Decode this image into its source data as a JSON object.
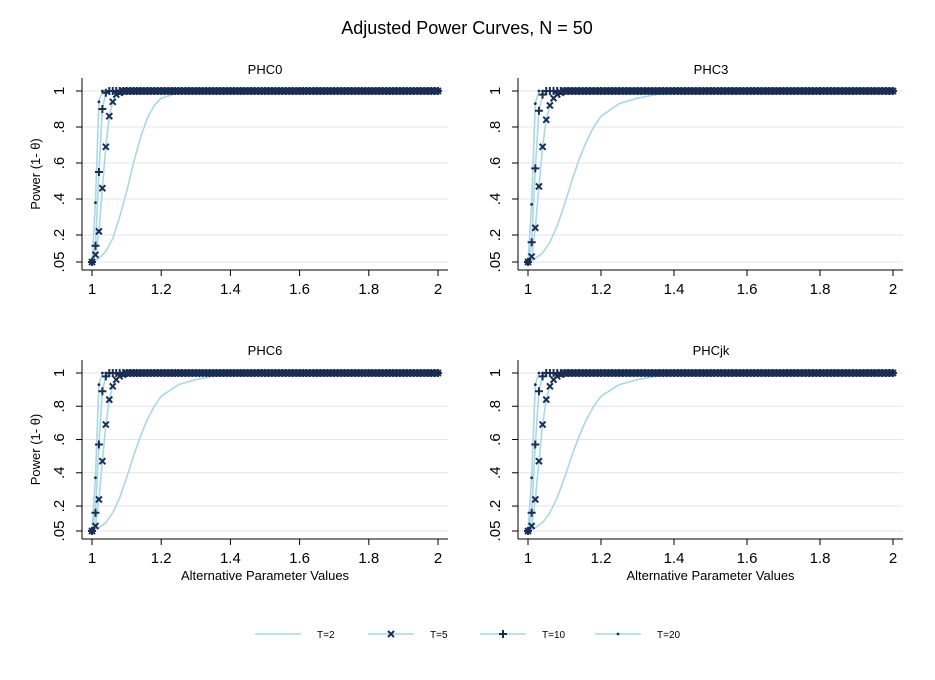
{
  "figure": {
    "title": "Adjusted Power Curves, N = 50",
    "colors": {
      "t2": "#a8d8e6",
      "markers": "#1a2e55",
      "grid": "#e6e6e6",
      "axis": "#000000"
    }
  },
  "chart_data": [
    {
      "type": "line",
      "title": "PHC0",
      "xlabel": "",
      "ylabel": "Power (1- θ)",
      "xlim": [
        1,
        2
      ],
      "ylim": [
        0.05,
        1
      ],
      "xticks": [
        "1",
        "1.2",
        "1.4",
        "1.6",
        "1.8",
        "2"
      ],
      "yticks": [
        ".05",
        ".2",
        ".4",
        ".6",
        ".8",
        "1"
      ],
      "grid": true,
      "series": [
        {
          "name": "T=2",
          "marker": "none",
          "x": [
            1,
            1.02,
            1.04,
            1.06,
            1.08,
            1.1,
            1.12,
            1.14,
            1.16,
            1.18,
            1.2,
            1.25,
            1.3,
            1.4,
            1.6,
            1.8,
            2
          ],
          "y": [
            0.05,
            0.07,
            0.11,
            0.18,
            0.3,
            0.44,
            0.6,
            0.74,
            0.85,
            0.92,
            0.96,
            0.99,
            1,
            1,
            1,
            1,
            1
          ]
        },
        {
          "name": "T=5",
          "marker": "x",
          "x": [
            1,
            1.01,
            1.02,
            1.03,
            1.04,
            1.05,
            1.06,
            1.07,
            1.08,
            1.09,
            1.1
          ],
          "y": [
            0.05,
            0.09,
            0.22,
            0.46,
            0.69,
            0.86,
            0.94,
            0.98,
            0.99,
            1,
            1
          ]
        },
        {
          "name": "T=10",
          "marker": "plus",
          "x": [
            1,
            1.01,
            1.02,
            1.03,
            1.04,
            1.05,
            1.06,
            1.07
          ],
          "y": [
            0.05,
            0.14,
            0.55,
            0.9,
            0.99,
            1,
            1,
            1
          ]
        },
        {
          "name": "T=20",
          "marker": "dot",
          "x": [
            1,
            1.01,
            1.02,
            1.03,
            1.04,
            1.05
          ],
          "y": [
            0.05,
            0.38,
            0.94,
            1,
            1,
            1
          ]
        }
      ]
    },
    {
      "type": "line",
      "title": "PHC3",
      "xlabel": "",
      "ylabel": "",
      "xlim": [
        1,
        2
      ],
      "ylim": [
        0.05,
        1
      ],
      "xticks": [
        "1",
        "1.2",
        "1.4",
        "1.6",
        "1.8",
        "2"
      ],
      "yticks": [
        ".05",
        ".2",
        ".4",
        ".6",
        ".8",
        "1"
      ],
      "grid": true,
      "series": [
        {
          "name": "T=2",
          "marker": "none",
          "x": [
            1,
            1.02,
            1.04,
            1.06,
            1.08,
            1.1,
            1.12,
            1.14,
            1.16,
            1.18,
            1.2,
            1.25,
            1.3,
            1.35,
            1.4,
            1.5,
            1.6,
            1.8,
            2
          ],
          "y": [
            0.05,
            0.07,
            0.1,
            0.16,
            0.25,
            0.37,
            0.5,
            0.62,
            0.72,
            0.8,
            0.86,
            0.93,
            0.96,
            0.98,
            0.99,
            1,
            1,
            1,
            1
          ]
        },
        {
          "name": "T=5",
          "marker": "x",
          "x": [
            1,
            1.01,
            1.02,
            1.03,
            1.04,
            1.05,
            1.06,
            1.07,
            1.08,
            1.09,
            1.1,
            1.12
          ],
          "y": [
            0.05,
            0.08,
            0.24,
            0.47,
            0.69,
            0.84,
            0.92,
            0.96,
            0.98,
            0.99,
            1,
            1
          ]
        },
        {
          "name": "T=10",
          "marker": "plus",
          "x": [
            1,
            1.01,
            1.02,
            1.03,
            1.04,
            1.05,
            1.06,
            1.07
          ],
          "y": [
            0.05,
            0.16,
            0.57,
            0.89,
            0.98,
            1,
            1,
            1
          ]
        },
        {
          "name": "T=20",
          "marker": "dot",
          "x": [
            1,
            1.01,
            1.02,
            1.03,
            1.04,
            1.05
          ],
          "y": [
            0.05,
            0.37,
            0.93,
            1,
            1,
            1
          ]
        }
      ]
    },
    {
      "type": "line",
      "title": "PHC6",
      "xlabel": "Alternative Parameter Values",
      "ylabel": "Power (1- θ)",
      "xlim": [
        1,
        2
      ],
      "ylim": [
        0.05,
        1
      ],
      "xticks": [
        "1",
        "1.2",
        "1.4",
        "1.6",
        "1.8",
        "2"
      ],
      "yticks": [
        ".05",
        ".2",
        ".4",
        ".6",
        ".8",
        "1"
      ],
      "grid": true,
      "series": [
        {
          "name": "T=2",
          "marker": "none",
          "x": [
            1,
            1.02,
            1.04,
            1.06,
            1.08,
            1.1,
            1.12,
            1.14,
            1.16,
            1.18,
            1.2,
            1.25,
            1.3,
            1.35,
            1.4,
            1.5,
            1.6,
            1.8,
            2
          ],
          "y": [
            0.05,
            0.07,
            0.1,
            0.16,
            0.25,
            0.37,
            0.5,
            0.62,
            0.72,
            0.8,
            0.86,
            0.93,
            0.96,
            0.98,
            0.99,
            1,
            1,
            1,
            1
          ]
        },
        {
          "name": "T=5",
          "marker": "x",
          "x": [
            1,
            1.01,
            1.02,
            1.03,
            1.04,
            1.05,
            1.06,
            1.07,
            1.08,
            1.09,
            1.1,
            1.12
          ],
          "y": [
            0.05,
            0.08,
            0.24,
            0.47,
            0.69,
            0.84,
            0.92,
            0.96,
            0.98,
            0.99,
            1,
            1
          ]
        },
        {
          "name": "T=10",
          "marker": "plus",
          "x": [
            1,
            1.01,
            1.02,
            1.03,
            1.04,
            1.05,
            1.06,
            1.07
          ],
          "y": [
            0.05,
            0.16,
            0.57,
            0.89,
            0.98,
            1,
            1,
            1
          ]
        },
        {
          "name": "T=20",
          "marker": "dot",
          "x": [
            1,
            1.01,
            1.02,
            1.03,
            1.04,
            1.05
          ],
          "y": [
            0.05,
            0.37,
            0.93,
            1,
            1,
            1
          ]
        }
      ]
    },
    {
      "type": "line",
      "title": "PHCjk",
      "xlabel": "Alternative Parameter Values",
      "ylabel": "",
      "xlim": [
        1,
        2
      ],
      "ylim": [
        0.05,
        1
      ],
      "xticks": [
        "1",
        "1.2",
        "1.4",
        "1.6",
        "1.8",
        "2"
      ],
      "yticks": [
        ".05",
        ".2",
        ".4",
        ".6",
        ".8",
        "1"
      ],
      "grid": true,
      "series": [
        {
          "name": "T=2",
          "marker": "none",
          "x": [
            1,
            1.02,
            1.04,
            1.06,
            1.08,
            1.1,
            1.12,
            1.14,
            1.16,
            1.18,
            1.2,
            1.25,
            1.3,
            1.35,
            1.4,
            1.5,
            1.6,
            1.8,
            2
          ],
          "y": [
            0.05,
            0.07,
            0.1,
            0.16,
            0.25,
            0.37,
            0.5,
            0.62,
            0.72,
            0.8,
            0.86,
            0.93,
            0.96,
            0.98,
            0.99,
            1,
            1,
            1,
            1
          ]
        },
        {
          "name": "T=5",
          "marker": "x",
          "x": [
            1,
            1.01,
            1.02,
            1.03,
            1.04,
            1.05,
            1.06,
            1.07,
            1.08,
            1.09,
            1.1,
            1.12
          ],
          "y": [
            0.05,
            0.08,
            0.24,
            0.47,
            0.69,
            0.84,
            0.92,
            0.96,
            0.98,
            0.99,
            1,
            1
          ]
        },
        {
          "name": "T=10",
          "marker": "plus",
          "x": [
            1,
            1.01,
            1.02,
            1.03,
            1.04,
            1.05,
            1.06,
            1.07
          ],
          "y": [
            0.05,
            0.16,
            0.57,
            0.89,
            0.98,
            1,
            1,
            1
          ]
        },
        {
          "name": "T=20",
          "marker": "dot",
          "x": [
            1,
            1.01,
            1.02,
            1.03,
            1.04,
            1.05
          ],
          "y": [
            0.05,
            0.37,
            0.93,
            1,
            1,
            1
          ]
        }
      ]
    }
  ],
  "legend": {
    "placement": "bottom",
    "items": [
      {
        "label": "T=2",
        "marker": "none"
      },
      {
        "label": "T=5",
        "marker": "x"
      },
      {
        "label": "T=10",
        "marker": "plus"
      },
      {
        "label": "T=20",
        "marker": "dot"
      }
    ]
  }
}
